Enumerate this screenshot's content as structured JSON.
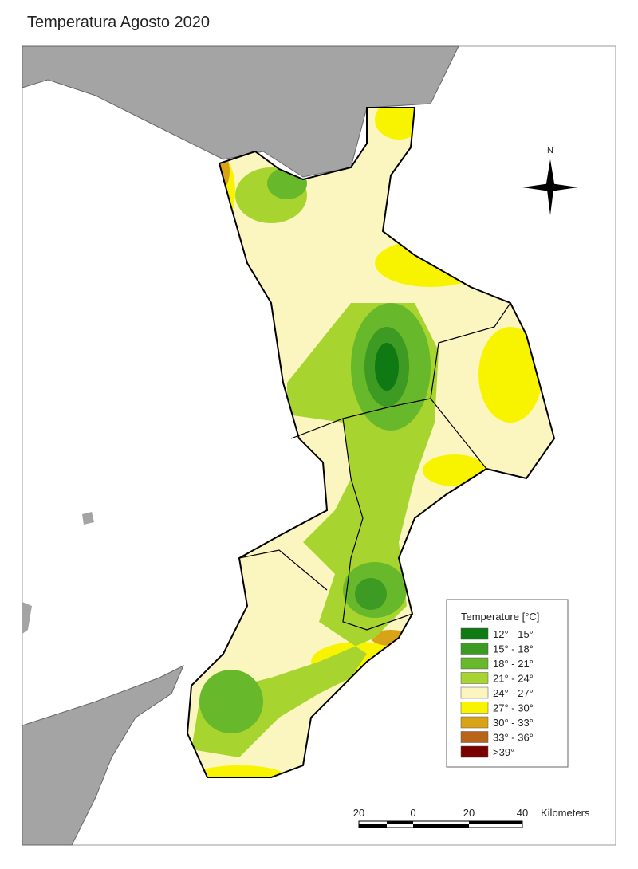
{
  "title": "Temperatura Agosto 2020",
  "north_label": "N",
  "legend": {
    "title": "Temperature [°C]",
    "items": [
      {
        "label": "12° - 15°",
        "color": "#0f7a14"
      },
      {
        "label": "15° - 18°",
        "color": "#3d9a22"
      },
      {
        "label": "18° - 21°",
        "color": "#67b82a"
      },
      {
        "label": "21° - 24°",
        "color": "#a8d430"
      },
      {
        "label": "24° - 27°",
        "color": "#fbf5c0"
      },
      {
        "label": "27° - 30°",
        "color": "#f8f400"
      },
      {
        "label": "30° - 33°",
        "color": "#d9a318"
      },
      {
        "label": "33° - 36°",
        "color": "#b8641a"
      },
      {
        "label": ">39°",
        "color": "#7a0000"
      }
    ]
  },
  "scale_bar": {
    "labels": [
      "20",
      "0",
      "20",
      "40"
    ],
    "unit": "Kilometers"
  }
}
